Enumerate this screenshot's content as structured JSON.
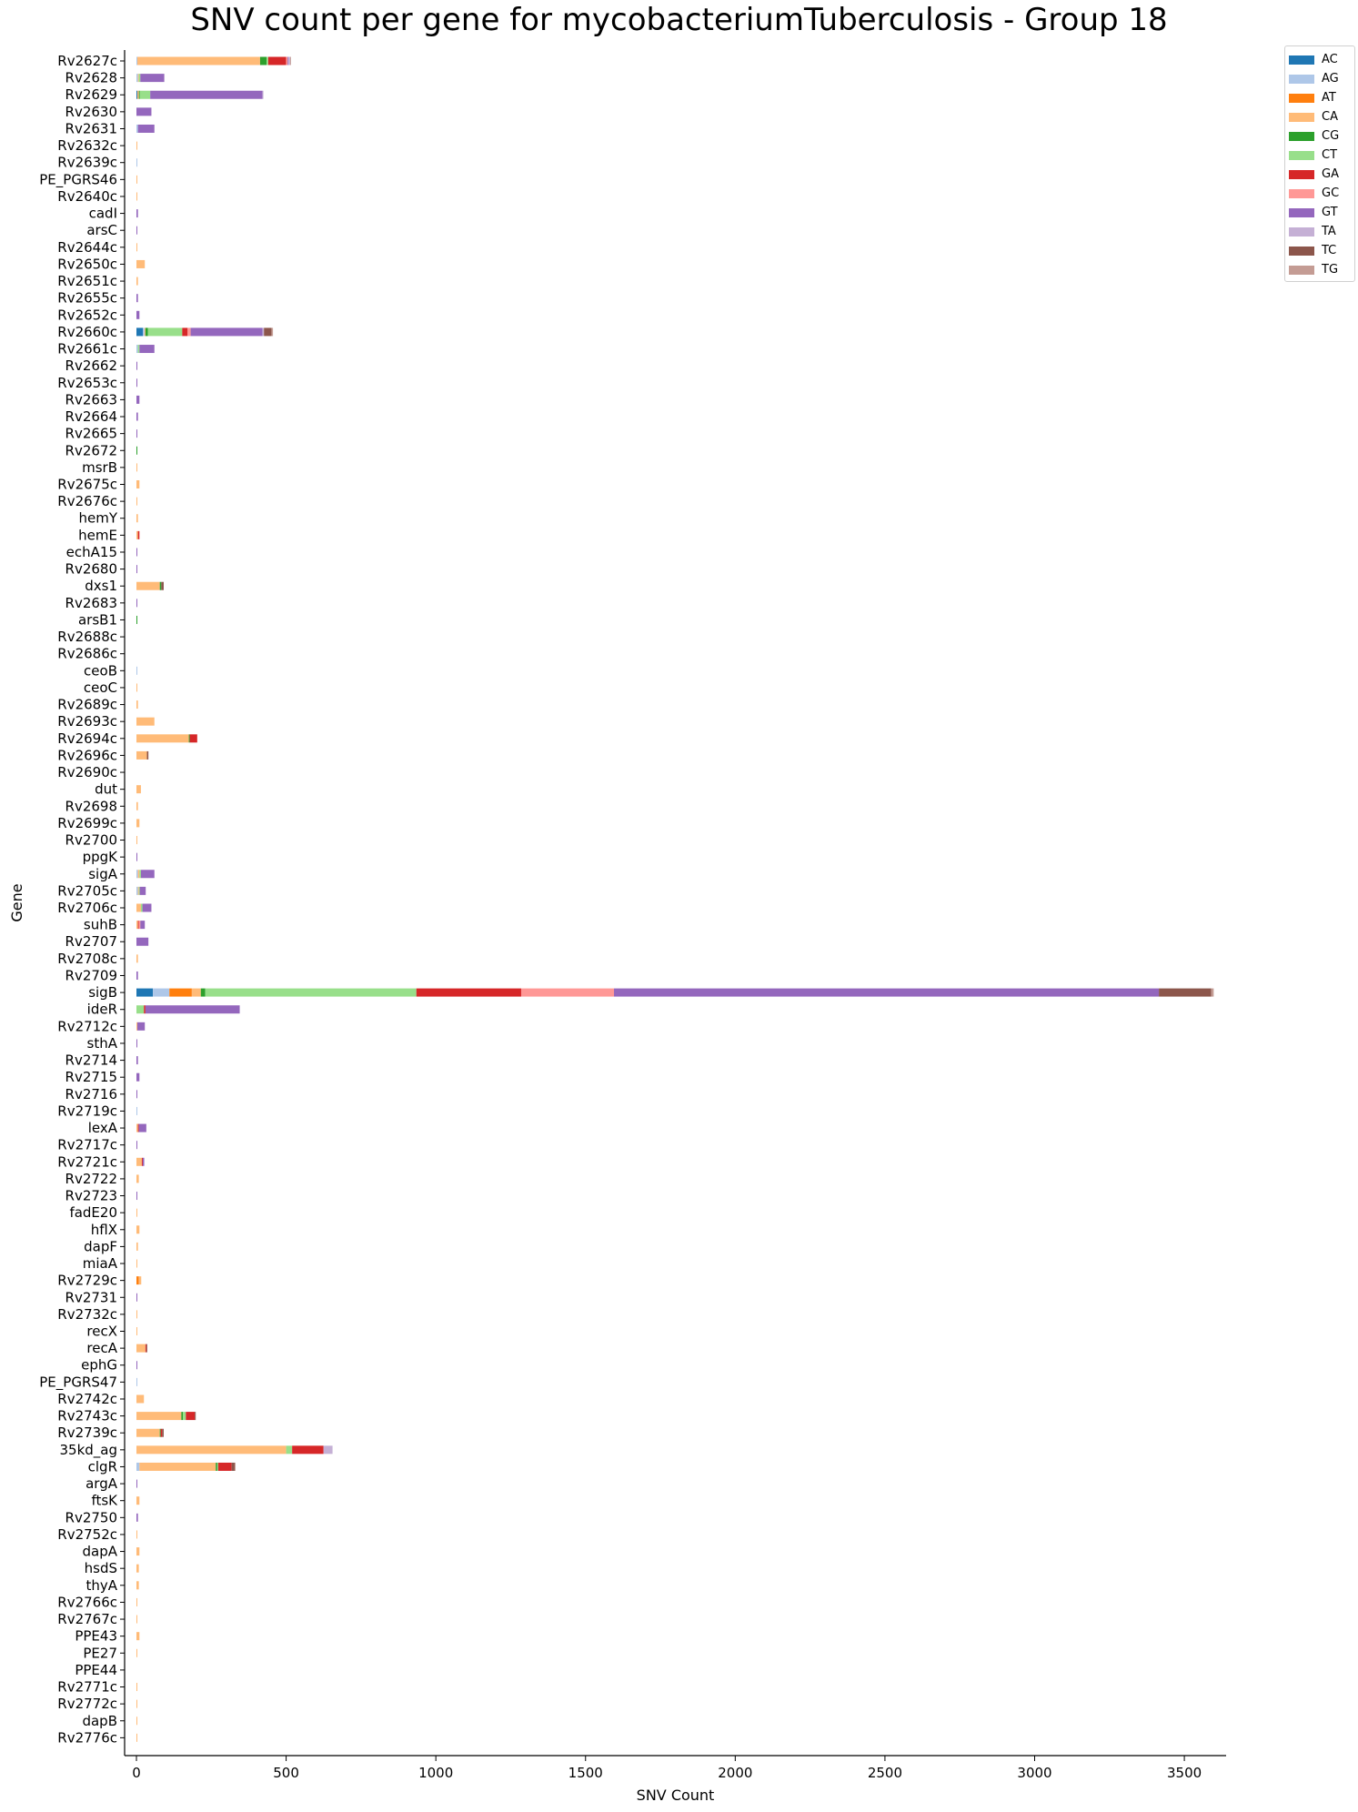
{
  "chart_data": {
    "type": "bar",
    "orientation": "horizontal",
    "stacked": true,
    "title": "SNV count per gene for mycobacteriumTuberculosis - Group 18",
    "xlabel": "SNV Count",
    "ylabel": "Gene",
    "xlim": [
      0,
      3600
    ],
    "xticks": [
      0,
      500,
      1000,
      1500,
      2000,
      2500,
      3000,
      3500
    ],
    "grid": false,
    "legend_position": "top-right, outside plot",
    "categories": [
      "Rv2627c",
      "Rv2628",
      "Rv2629",
      "Rv2630",
      "Rv2631",
      "Rv2632c",
      "Rv2639c",
      "PE_PGRS46",
      "Rv2640c",
      "cadI",
      "arsC",
      "Rv2644c",
      "Rv2650c",
      "Rv2651c",
      "Rv2655c",
      "Rv2652c",
      "Rv2660c",
      "Rv2661c",
      "Rv2662",
      "Rv2653c",
      "Rv2663",
      "Rv2664",
      "Rv2665",
      "Rv2672",
      "msrB",
      "Rv2675c",
      "Rv2676c",
      "hemY",
      "hemE",
      "echA15",
      "Rv2680",
      "dxs1",
      "Rv2683",
      "arsB1",
      "Rv2688c",
      "Rv2686c",
      "ceoB",
      "ceoC",
      "Rv2689c",
      "Rv2693c",
      "Rv2694c",
      "Rv2696c",
      "Rv2690c",
      "dut",
      "Rv2698",
      "Rv2699c",
      "Rv2700",
      "ppgK",
      "sigA",
      "Rv2705c",
      "Rv2706c",
      "suhB",
      "Rv2707",
      "Rv2708c",
      "Rv2709",
      "sigB",
      "ideR",
      "Rv2712c",
      "sthA",
      "Rv2714",
      "Rv2715",
      "Rv2716",
      "Rv2719c",
      "lexA",
      "Rv2717c",
      "Rv2721c",
      "Rv2722",
      "Rv2723",
      "fadE20",
      "hflX",
      "dapF",
      "miaA",
      "Rv2729c",
      "Rv2731",
      "Rv2732c",
      "recX",
      "recA",
      "ephG",
      "PE_PGRS47",
      "Rv2742c",
      "Rv2743c",
      "Rv2739c",
      "35kd_ag",
      "clgR",
      "argA",
      "ftsK",
      "Rv2750",
      "Rv2752c",
      "dapA",
      "hsdS",
      "thyA",
      "Rv2766c",
      "Rv2767c",
      "PPE43",
      "PE27",
      "PPE44",
      "Rv2771c",
      "Rv2772c",
      "dapB",
      "Rv2776c"
    ],
    "series": [
      {
        "name": "AC",
        "color": "#1f77b4",
        "values": [
          0,
          0,
          3,
          0,
          0,
          0,
          0,
          0,
          0,
          0,
          0,
          0,
          0,
          0,
          0,
          0,
          22,
          0,
          0,
          0,
          0,
          0,
          0,
          0,
          0,
          0,
          0,
          0,
          0,
          0,
          0,
          0,
          0,
          0,
          0,
          0,
          0,
          0,
          0,
          0,
          0,
          0,
          0,
          0,
          0,
          0,
          0,
          0,
          0,
          0,
          0,
          0,
          0,
          0,
          0,
          55,
          0,
          0,
          0,
          0,
          0,
          0,
          0,
          0,
          0,
          0,
          0,
          0,
          0,
          0,
          0,
          0,
          0,
          0,
          0,
          0,
          0,
          0,
          0,
          0,
          0,
          0,
          0,
          0,
          0,
          0,
          0,
          0,
          0,
          0,
          0,
          0,
          0,
          0,
          0,
          0,
          0,
          0,
          0,
          0
        ]
      },
      {
        "name": "AG",
        "color": "#aec7e8",
        "values": [
          3,
          5,
          0,
          0,
          5,
          0,
          3,
          0,
          0,
          0,
          0,
          0,
          0,
          0,
          0,
          0,
          5,
          5,
          0,
          0,
          0,
          0,
          0,
          0,
          0,
          0,
          0,
          0,
          0,
          0,
          0,
          0,
          0,
          0,
          0,
          0,
          3,
          0,
          0,
          0,
          0,
          0,
          0,
          0,
          0,
          0,
          0,
          0,
          5,
          5,
          0,
          0,
          0,
          0,
          0,
          55,
          0,
          0,
          0,
          0,
          0,
          0,
          2,
          0,
          0,
          0,
          0,
          0,
          0,
          0,
          0,
          0,
          0,
          0,
          0,
          0,
          0,
          0,
          3,
          0,
          0,
          0,
          0,
          10,
          0,
          0,
          0,
          0,
          0,
          0,
          0,
          0,
          0,
          0,
          0,
          0,
          0,
          0,
          0,
          0
        ]
      },
      {
        "name": "AT",
        "color": "#ff7f0e",
        "values": [
          0,
          0,
          0,
          0,
          0,
          0,
          0,
          0,
          0,
          0,
          0,
          0,
          0,
          0,
          0,
          0,
          0,
          0,
          0,
          0,
          0,
          0,
          0,
          0,
          0,
          0,
          0,
          0,
          0,
          0,
          0,
          0,
          0,
          0,
          0,
          0,
          0,
          0,
          0,
          0,
          0,
          0,
          0,
          0,
          0,
          0,
          0,
          0,
          0,
          0,
          0,
          0,
          0,
          0,
          0,
          75,
          0,
          0,
          0,
          0,
          0,
          0,
          0,
          0,
          0,
          0,
          0,
          0,
          0,
          0,
          0,
          0,
          8,
          0,
          0,
          0,
          0,
          0,
          0,
          0,
          0,
          0,
          0,
          0,
          0,
          0,
          0,
          0,
          0,
          0,
          0,
          0,
          0,
          0,
          0,
          0,
          0,
          0,
          0,
          0
        ]
      },
      {
        "name": "CA",
        "color": "#ffbb78",
        "values": [
          410,
          3,
          5,
          0,
          0,
          3,
          0,
          3,
          3,
          0,
          0,
          3,
          28,
          5,
          0,
          0,
          3,
          0,
          0,
          0,
          0,
          0,
          0,
          0,
          3,
          10,
          3,
          5,
          5,
          0,
          0,
          78,
          0,
          0,
          0,
          0,
          0,
          3,
          5,
          60,
          175,
          35,
          0,
          15,
          5,
          10,
          3,
          0,
          5,
          3,
          15,
          5,
          0,
          5,
          0,
          30,
          0,
          3,
          0,
          0,
          0,
          0,
          0,
          5,
          0,
          18,
          8,
          0,
          3,
          10,
          5,
          3,
          8,
          0,
          3,
          3,
          30,
          0,
          0,
          25,
          150,
          78,
          500,
          255,
          0,
          10,
          0,
          3,
          10,
          8,
          8,
          3,
          3,
          10,
          3,
          0,
          3,
          3,
          3,
          3
        ]
      },
      {
        "name": "CG",
        "color": "#2ca02c",
        "values": [
          22,
          0,
          3,
          0,
          0,
          0,
          0,
          0,
          0,
          0,
          0,
          0,
          0,
          0,
          0,
          0,
          8,
          0,
          0,
          0,
          0,
          0,
          0,
          3,
          0,
          0,
          0,
          0,
          0,
          0,
          0,
          5,
          0,
          3,
          0,
          0,
          0,
          0,
          0,
          0,
          3,
          0,
          0,
          0,
          0,
          0,
          0,
          0,
          0,
          0,
          0,
          0,
          0,
          0,
          0,
          15,
          0,
          0,
          0,
          0,
          0,
          0,
          0,
          0,
          0,
          0,
          0,
          0,
          0,
          0,
          0,
          0,
          0,
          0,
          0,
          0,
          0,
          0,
          0,
          0,
          5,
          3,
          0,
          5,
          0,
          0,
          0,
          0,
          0,
          0,
          0,
          0,
          0,
          0,
          0,
          0,
          0,
          0,
          0,
          0
        ]
      },
      {
        "name": "CT",
        "color": "#98df8a",
        "values": [
          5,
          5,
          35,
          0,
          0,
          0,
          0,
          0,
          0,
          0,
          0,
          0,
          0,
          0,
          0,
          0,
          115,
          5,
          0,
          0,
          0,
          0,
          0,
          0,
          0,
          0,
          0,
          0,
          0,
          0,
          0,
          0,
          0,
          0,
          0,
          0,
          0,
          0,
          0,
          0,
          0,
          0,
          0,
          0,
          0,
          0,
          0,
          0,
          5,
          3,
          5,
          0,
          0,
          0,
          0,
          705,
          25,
          0,
          0,
          0,
          0,
          0,
          0,
          0,
          0,
          0,
          0,
          0,
          0,
          0,
          0,
          0,
          0,
          0,
          0,
          0,
          0,
          0,
          0,
          0,
          10,
          0,
          20,
          3,
          0,
          0,
          0,
          0,
          0,
          0,
          0,
          0,
          0,
          0,
          0,
          0,
          0,
          0,
          0,
          0
        ]
      },
      {
        "name": "GA",
        "color": "#d62728",
        "values": [
          60,
          0,
          0,
          0,
          0,
          0,
          0,
          0,
          0,
          0,
          0,
          0,
          0,
          0,
          0,
          0,
          18,
          0,
          0,
          0,
          0,
          0,
          0,
          0,
          0,
          0,
          0,
          0,
          5,
          0,
          0,
          0,
          0,
          0,
          0,
          0,
          0,
          0,
          0,
          0,
          25,
          0,
          0,
          0,
          0,
          0,
          0,
          0,
          0,
          0,
          0,
          3,
          0,
          0,
          0,
          350,
          5,
          0,
          0,
          0,
          0,
          0,
          0,
          3,
          0,
          3,
          0,
          0,
          0,
          0,
          0,
          0,
          0,
          0,
          0,
          0,
          3,
          0,
          0,
          0,
          30,
          5,
          105,
          45,
          0,
          0,
          0,
          0,
          0,
          0,
          0,
          0,
          0,
          0,
          0,
          0,
          0,
          0,
          0,
          0
        ]
      },
      {
        "name": "GC",
        "color": "#ff9896",
        "values": [
          5,
          0,
          0,
          0,
          0,
          0,
          0,
          0,
          0,
          0,
          0,
          0,
          0,
          0,
          0,
          0,
          10,
          0,
          0,
          0,
          0,
          0,
          0,
          0,
          0,
          0,
          0,
          0,
          0,
          0,
          0,
          0,
          0,
          0,
          0,
          0,
          0,
          0,
          0,
          0,
          0,
          0,
          0,
          0,
          0,
          0,
          0,
          0,
          0,
          0,
          0,
          5,
          0,
          0,
          0,
          310,
          0,
          0,
          0,
          0,
          0,
          0,
          0,
          0,
          0,
          0,
          0,
          0,
          0,
          0,
          0,
          0,
          0,
          0,
          0,
          0,
          0,
          0,
          0,
          0,
          0,
          0,
          0,
          0,
          0,
          0,
          0,
          0,
          0,
          0,
          0,
          0,
          0,
          0,
          0,
          0,
          0,
          0,
          0,
          0
        ]
      },
      {
        "name": "GT",
        "color": "#9467bd",
        "values": [
          3,
          80,
          375,
          50,
          55,
          0,
          0,
          0,
          0,
          5,
          3,
          0,
          0,
          0,
          5,
          10,
          240,
          50,
          3,
          3,
          10,
          5,
          3,
          0,
          0,
          0,
          0,
          0,
          0,
          3,
          3,
          0,
          3,
          0,
          0,
          0,
          0,
          0,
          0,
          0,
          0,
          0,
          0,
          0,
          0,
          0,
          0,
          3,
          45,
          20,
          30,
          15,
          40,
          0,
          5,
          1820,
          315,
          25,
          3,
          5,
          10,
          3,
          0,
          25,
          3,
          5,
          0,
          3,
          0,
          0,
          0,
          0,
          0,
          3,
          0,
          0,
          0,
          3,
          0,
          0,
          0,
          0,
          0,
          0,
          3,
          0,
          5,
          0,
          0,
          0,
          0,
          0,
          0,
          0,
          0,
          0,
          0,
          0,
          0,
          0
        ]
      },
      {
        "name": "TA",
        "color": "#c5b0d5",
        "values": [
          5,
          0,
          3,
          0,
          0,
          0,
          0,
          0,
          0,
          0,
          0,
          0,
          0,
          0,
          0,
          0,
          5,
          0,
          0,
          0,
          0,
          0,
          0,
          0,
          0,
          0,
          0,
          0,
          0,
          0,
          0,
          0,
          0,
          0,
          0,
          0,
          0,
          0,
          0,
          0,
          0,
          0,
          0,
          0,
          0,
          0,
          0,
          0,
          0,
          0,
          0,
          0,
          0,
          0,
          0,
          0,
          0,
          0,
          0,
          0,
          0,
          0,
          0,
          0,
          0,
          0,
          0,
          0,
          0,
          0,
          0,
          0,
          0,
          0,
          0,
          0,
          0,
          0,
          0,
          0,
          0,
          0,
          30,
          0,
          0,
          0,
          0,
          0,
          0,
          0,
          0,
          0,
          0,
          0,
          0,
          0,
          0,
          0,
          0,
          0
        ]
      },
      {
        "name": "TC",
        "color": "#8c564b",
        "values": [
          0,
          0,
          0,
          0,
          0,
          0,
          0,
          0,
          0,
          0,
          0,
          0,
          0,
          0,
          0,
          0,
          25,
          0,
          0,
          0,
          0,
          0,
          0,
          0,
          0,
          0,
          0,
          0,
          0,
          0,
          0,
          8,
          0,
          0,
          0,
          0,
          0,
          0,
          0,
          0,
          0,
          5,
          0,
          0,
          0,
          0,
          0,
          0,
          0,
          0,
          0,
          0,
          0,
          0,
          0,
          175,
          0,
          0,
          0,
          0,
          0,
          0,
          0,
          0,
          0,
          0,
          0,
          0,
          0,
          0,
          0,
          0,
          0,
          0,
          0,
          0,
          3,
          0,
          0,
          0,
          3,
          5,
          0,
          10,
          0,
          0,
          0,
          0,
          0,
          0,
          0,
          0,
          0,
          0,
          0,
          0,
          0,
          0,
          0,
          0
        ]
      },
      {
        "name": "TG",
        "color": "#c49c94",
        "values": [
          3,
          0,
          0,
          0,
          0,
          0,
          0,
          0,
          0,
          0,
          0,
          0,
          0,
          0,
          0,
          0,
          5,
          0,
          0,
          0,
          0,
          0,
          0,
          0,
          0,
          0,
          0,
          0,
          0,
          0,
          0,
          0,
          0,
          0,
          0,
          0,
          0,
          0,
          0,
          0,
          0,
          0,
          0,
          0,
          0,
          0,
          0,
          0,
          0,
          0,
          0,
          0,
          0,
          0,
          0,
          8,
          0,
          0,
          0,
          0,
          0,
          0,
          0,
          0,
          0,
          0,
          0,
          0,
          0,
          0,
          0,
          0,
          0,
          0,
          0,
          0,
          0,
          0,
          0,
          0,
          0,
          0,
          0,
          3,
          0,
          0,
          0,
          0,
          0,
          0,
          0,
          0,
          0,
          0,
          0,
          0,
          0,
          0,
          0,
          0
        ]
      }
    ]
  }
}
